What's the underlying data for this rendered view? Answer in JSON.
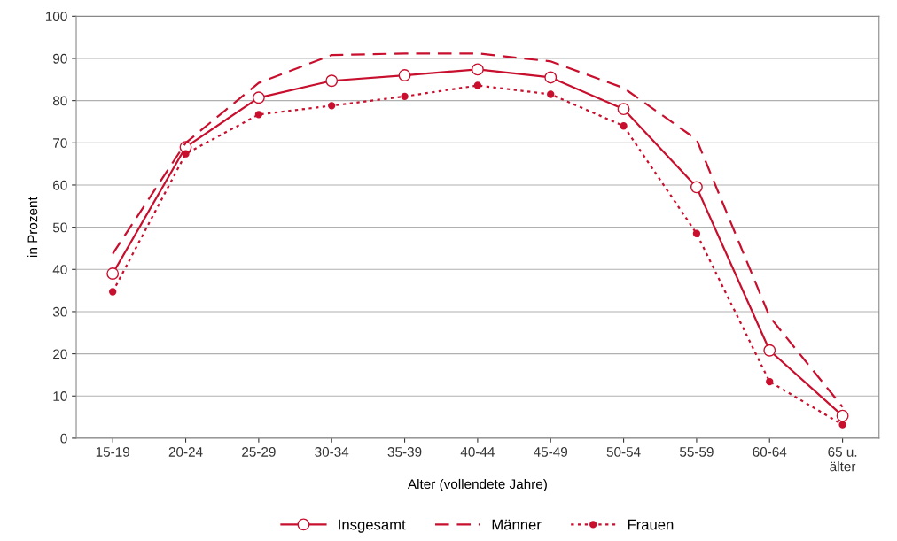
{
  "chart_data": {
    "type": "line",
    "xlabel": "Alter (vollendete Jahre)",
    "ylabel": "in Prozent",
    "categories": [
      "15-19",
      "20-24",
      "25-29",
      "30-34",
      "35-39",
      "40-44",
      "45-49",
      "50-54",
      "55-59",
      "60-64",
      "65 u.\nälter"
    ],
    "series": [
      {
        "name": "Insgesamt",
        "color": "#c8102e",
        "marker": "circle",
        "line_style": "solid",
        "values": [
          39,
          69,
          80.7,
          84.7,
          86,
          87.4,
          85.5,
          78,
          59.5,
          20.8,
          5.3
        ]
      },
      {
        "name": "Männer",
        "color": "#c8102e",
        "marker": "none",
        "line_style": "dashed",
        "values": [
          43.7,
          70,
          84.2,
          90.8,
          91.2,
          91.2,
          89.3,
          83,
          70.8,
          28.8,
          7.4
        ]
      },
      {
        "name": "Frauen",
        "color": "#c8102e",
        "marker": "circle",
        "line_style": "dotted",
        "values": [
          34.7,
          67.4,
          76.7,
          78.8,
          81,
          83.6,
          81.5,
          74,
          48.5,
          13.4,
          3.2
        ]
      }
    ],
    "ylim": [
      0,
      100
    ],
    "yticks": [
      0,
      10,
      20,
      30,
      40,
      50,
      60,
      70,
      80,
      90,
      100
    ],
    "grid": "y",
    "legend": "bottom"
  }
}
